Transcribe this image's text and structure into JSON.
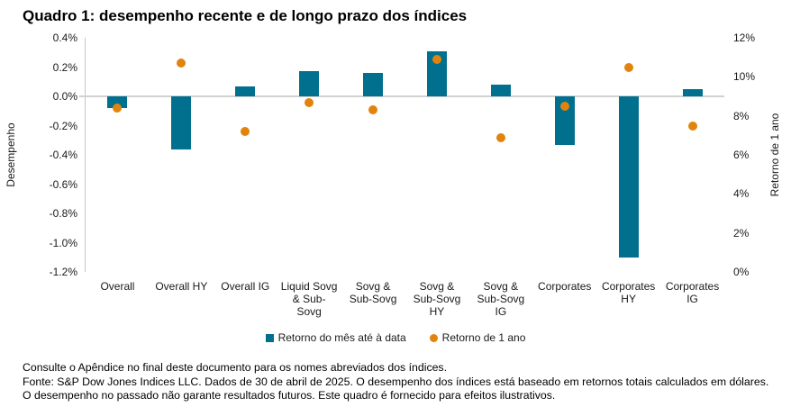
{
  "title": "Quadro 1: desempenho recente e de longo prazo dos índices",
  "chart_data": {
    "type": "bar",
    "subtype": "combo-bar-scatter-dual-axis",
    "categories": [
      "Overall",
      "Overall HY",
      "Overall IG",
      "Liquid Sovg & Sub-Sovg",
      "Sovg & Sub-Sovg",
      "Sovg & Sub-Sovg HY",
      "Sovg & Sub-Sovg IG",
      "Corporates",
      "Corporates HY",
      "Corporates IG"
    ],
    "category_display_labels": [
      "Overall",
      "Overall HY",
      "Overall IG",
      "Liquid Sovg\n& Sub-\nSovg",
      "Sovg &\nSub-Sovg",
      "Sovg &\nSub-Sovg\nHY",
      "Sovg &\nSub-Sovg\nIG",
      "Corporates",
      "Corporates\nHY",
      "Corporates\nIG"
    ],
    "series": [
      {
        "name": "Retorno do mês até à data",
        "type": "bar",
        "axis": "left",
        "color": "#00708E",
        "values": [
          -0.08,
          -0.36,
          0.07,
          0.17,
          0.16,
          0.31,
          0.08,
          -0.33,
          -1.1,
          0.05
        ]
      },
      {
        "name": "Retorno de 1 ano",
        "type": "scatter",
        "axis": "right",
        "color": "#E2830D",
        "values": [
          8.4,
          10.7,
          7.2,
          8.7,
          8.3,
          10.9,
          6.9,
          8.5,
          10.5,
          7.5
        ]
      }
    ],
    "left_axis": {
      "title": "Desempenho",
      "min": -1.2,
      "max": 0.4,
      "ticks": [
        "0.4%",
        "0.2%",
        "0.0%",
        "-0.2%",
        "-0.4%",
        "-0.6%",
        "-0.8%",
        "-1.0%",
        "-1.2%"
      ]
    },
    "right_axis": {
      "title": "Retorno de 1 ano",
      "min": 0,
      "max": 12,
      "ticks": [
        "12%",
        "10%",
        "8%",
        "6%",
        "4%",
        "2%",
        "0%"
      ]
    },
    "legend_position": "bottom",
    "grid": "zero-line-only"
  },
  "legend": [
    {
      "label": "Retorno do mês até à data",
      "marker": "square",
      "color": "#00708E"
    },
    {
      "label": "Retorno de 1 ano",
      "marker": "circle",
      "color": "#E2830D"
    }
  ],
  "footer": {
    "note": "Consulte o Apêndice no final deste documento para os nomes abreviados dos índices.",
    "source": "Fonte: S&P Dow Jones Indices LLC. Dados de 30 de abril de 2025. O desempenho dos índices está baseado em retornos totais calculados em dólares. O desempenho no passado não garante resultados futuros. Este quadro é fornecido para efeitos ilustrativos."
  },
  "colors": {
    "bar": "#00708E",
    "dot": "#E2830D",
    "axis_line": "#C6C6C6",
    "grid_line": "#D2D2D2",
    "text": "#1A1A1A"
  }
}
